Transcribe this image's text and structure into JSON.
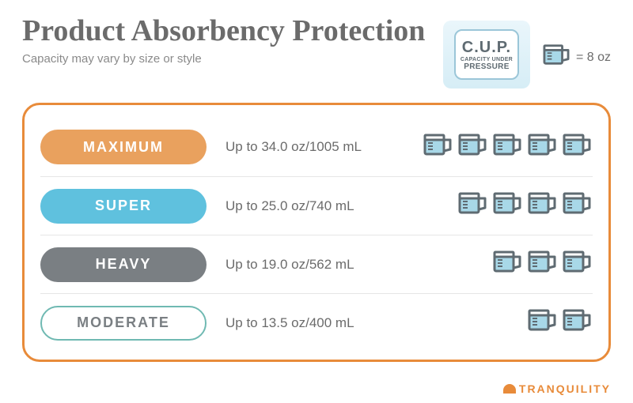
{
  "header": {
    "title": "Product Absorbency Protection",
    "subtitle": "Capacity may vary by size or style"
  },
  "badge": {
    "line1": "C.U.P.",
    "line2": "CAPACITY UNDER",
    "line3": "PRESSURE",
    "bg_gradient_top": "#eaf6fb",
    "bg_gradient_bottom": "#d6edf6",
    "border_color": "#9bc6d8"
  },
  "legend": {
    "text": "= 8 oz",
    "icon_color": "#5f6b72",
    "icon_fill": "#a8d8e8"
  },
  "frame": {
    "border_color": "#e88b3a",
    "divider_color": "#e6e6e6"
  },
  "levels": [
    {
      "label": "MAXIMUM",
      "capacity": "Up to 34.0 oz/1005 mL",
      "cups": 5,
      "pill_style": "solid",
      "pill_bg": "#e9a15e",
      "pill_text_color": "#ffffff"
    },
    {
      "label": "SUPER",
      "capacity": "Up to 25.0 oz/740 mL",
      "cups": 4,
      "pill_style": "solid",
      "pill_bg": "#5fc1de",
      "pill_text_color": "#ffffff"
    },
    {
      "label": "HEAVY",
      "capacity": "Up to 19.0 oz/562 mL",
      "cups": 3,
      "pill_style": "solid",
      "pill_bg": "#7a7f83",
      "pill_text_color": "#ffffff"
    },
    {
      "label": "MODERATE",
      "capacity": "Up to 13.5 oz/400 mL",
      "cups": 2,
      "pill_style": "outline",
      "pill_bg": "#ffffff",
      "pill_border": "#6fb9b2",
      "pill_text_color": "#7a7f83"
    }
  ],
  "icon": {
    "stroke": "#5f6b72",
    "fill": "#a8d8e8",
    "width": 40,
    "height": 34
  },
  "footer": {
    "brand": "TRANQUILITY",
    "color": "#e88b3a"
  },
  "colors": {
    "title": "#6b6b6b",
    "subtitle": "#8a8a8a",
    "capacity_text": "#6b6b6b",
    "background": "#ffffff"
  }
}
